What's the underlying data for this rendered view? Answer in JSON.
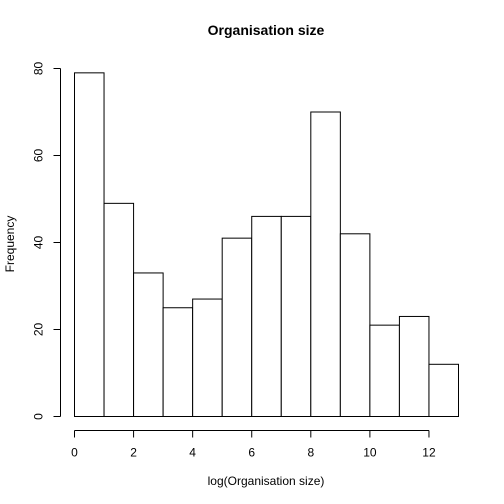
{
  "chart_data": {
    "type": "bar",
    "title": "Organisation size",
    "xlabel": "log(Organisation size)",
    "ylabel": "Frequency",
    "bins": [
      {
        "start": 0,
        "end": 1,
        "count": 79
      },
      {
        "start": 1,
        "end": 2,
        "count": 49
      },
      {
        "start": 2,
        "end": 3,
        "count": 33
      },
      {
        "start": 3,
        "end": 4,
        "count": 25
      },
      {
        "start": 4,
        "end": 5,
        "count": 27
      },
      {
        "start": 5,
        "end": 6,
        "count": 41
      },
      {
        "start": 6,
        "end": 7,
        "count": 46
      },
      {
        "start": 7,
        "end": 8,
        "count": 46
      },
      {
        "start": 8,
        "end": 9,
        "count": 70
      },
      {
        "start": 9,
        "end": 10,
        "count": 42
      },
      {
        "start": 10,
        "end": 11,
        "count": 21
      },
      {
        "start": 11,
        "end": 12,
        "count": 23
      },
      {
        "start": 12,
        "end": 13,
        "count": 12
      }
    ],
    "xlim": [
      0,
      13
    ],
    "ylim": [
      0,
      80
    ],
    "x_ticks": [
      "0",
      "2",
      "4",
      "6",
      "8",
      "10",
      "12"
    ],
    "y_ticks": [
      "0",
      "20",
      "40",
      "60",
      "80"
    ],
    "grid": false,
    "legend": "none"
  }
}
